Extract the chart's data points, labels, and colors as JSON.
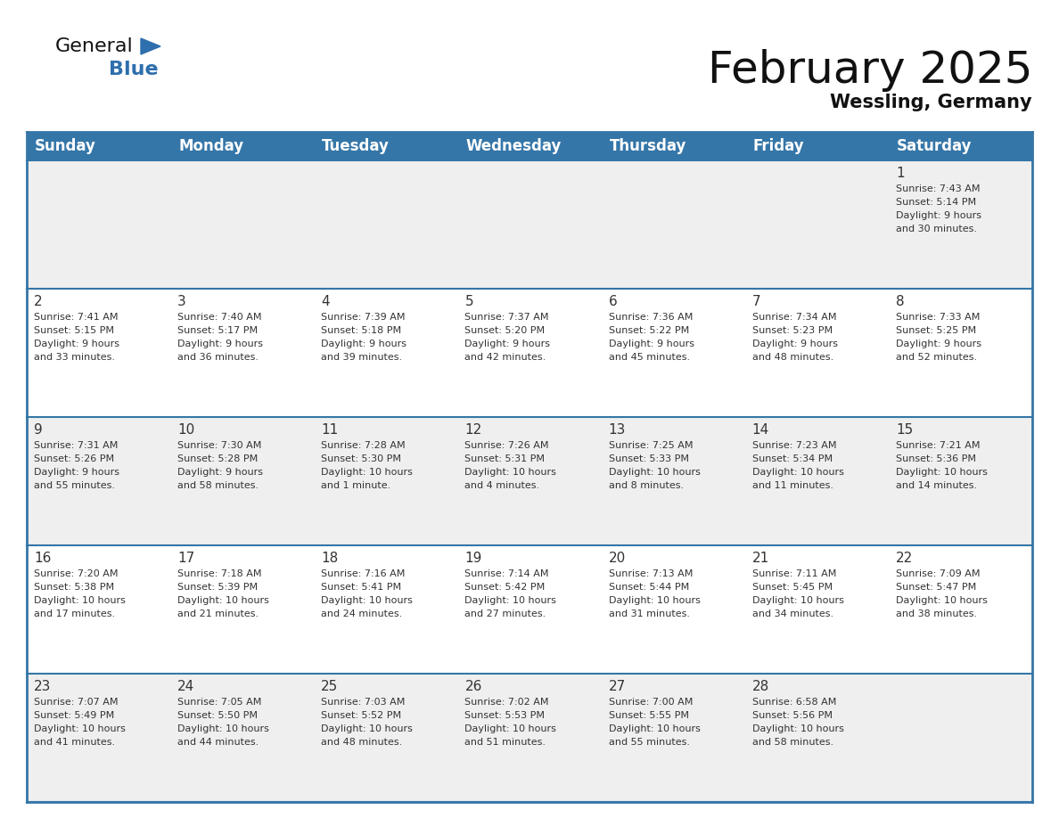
{
  "title": "February 2025",
  "subtitle": "Wessling, Germany",
  "header_bg": "#3576a8",
  "header_text_color": "#ffffff",
  "cell_bg_odd": "#efefef",
  "cell_bg_even": "#ffffff",
  "border_color": "#3576a8",
  "day_names": [
    "Sunday",
    "Monday",
    "Tuesday",
    "Wednesday",
    "Thursday",
    "Friday",
    "Saturday"
  ],
  "days": [
    {
      "day": 1,
      "col": 6,
      "row": 0,
      "sunrise": "7:43 AM",
      "sunset": "5:14 PM",
      "daylight": "9 hours\nand 30 minutes."
    },
    {
      "day": 2,
      "col": 0,
      "row": 1,
      "sunrise": "7:41 AM",
      "sunset": "5:15 PM",
      "daylight": "9 hours\nand 33 minutes."
    },
    {
      "day": 3,
      "col": 1,
      "row": 1,
      "sunrise": "7:40 AM",
      "sunset": "5:17 PM",
      "daylight": "9 hours\nand 36 minutes."
    },
    {
      "day": 4,
      "col": 2,
      "row": 1,
      "sunrise": "7:39 AM",
      "sunset": "5:18 PM",
      "daylight": "9 hours\nand 39 minutes."
    },
    {
      "day": 5,
      "col": 3,
      "row": 1,
      "sunrise": "7:37 AM",
      "sunset": "5:20 PM",
      "daylight": "9 hours\nand 42 minutes."
    },
    {
      "day": 6,
      "col": 4,
      "row": 1,
      "sunrise": "7:36 AM",
      "sunset": "5:22 PM",
      "daylight": "9 hours\nand 45 minutes."
    },
    {
      "day": 7,
      "col": 5,
      "row": 1,
      "sunrise": "7:34 AM",
      "sunset": "5:23 PM",
      "daylight": "9 hours\nand 48 minutes."
    },
    {
      "day": 8,
      "col": 6,
      "row": 1,
      "sunrise": "7:33 AM",
      "sunset": "5:25 PM",
      "daylight": "9 hours\nand 52 minutes."
    },
    {
      "day": 9,
      "col": 0,
      "row": 2,
      "sunrise": "7:31 AM",
      "sunset": "5:26 PM",
      "daylight": "9 hours\nand 55 minutes."
    },
    {
      "day": 10,
      "col": 1,
      "row": 2,
      "sunrise": "7:30 AM",
      "sunset": "5:28 PM",
      "daylight": "9 hours\nand 58 minutes."
    },
    {
      "day": 11,
      "col": 2,
      "row": 2,
      "sunrise": "7:28 AM",
      "sunset": "5:30 PM",
      "daylight": "10 hours\nand 1 minute."
    },
    {
      "day": 12,
      "col": 3,
      "row": 2,
      "sunrise": "7:26 AM",
      "sunset": "5:31 PM",
      "daylight": "10 hours\nand 4 minutes."
    },
    {
      "day": 13,
      "col": 4,
      "row": 2,
      "sunrise": "7:25 AM",
      "sunset": "5:33 PM",
      "daylight": "10 hours\nand 8 minutes."
    },
    {
      "day": 14,
      "col": 5,
      "row": 2,
      "sunrise": "7:23 AM",
      "sunset": "5:34 PM",
      "daylight": "10 hours\nand 11 minutes."
    },
    {
      "day": 15,
      "col": 6,
      "row": 2,
      "sunrise": "7:21 AM",
      "sunset": "5:36 PM",
      "daylight": "10 hours\nand 14 minutes."
    },
    {
      "day": 16,
      "col": 0,
      "row": 3,
      "sunrise": "7:20 AM",
      "sunset": "5:38 PM",
      "daylight": "10 hours\nand 17 minutes."
    },
    {
      "day": 17,
      "col": 1,
      "row": 3,
      "sunrise": "7:18 AM",
      "sunset": "5:39 PM",
      "daylight": "10 hours\nand 21 minutes."
    },
    {
      "day": 18,
      "col": 2,
      "row": 3,
      "sunrise": "7:16 AM",
      "sunset": "5:41 PM",
      "daylight": "10 hours\nand 24 minutes."
    },
    {
      "day": 19,
      "col": 3,
      "row": 3,
      "sunrise": "7:14 AM",
      "sunset": "5:42 PM",
      "daylight": "10 hours\nand 27 minutes."
    },
    {
      "day": 20,
      "col": 4,
      "row": 3,
      "sunrise": "7:13 AM",
      "sunset": "5:44 PM",
      "daylight": "10 hours\nand 31 minutes."
    },
    {
      "day": 21,
      "col": 5,
      "row": 3,
      "sunrise": "7:11 AM",
      "sunset": "5:45 PM",
      "daylight": "10 hours\nand 34 minutes."
    },
    {
      "day": 22,
      "col": 6,
      "row": 3,
      "sunrise": "7:09 AM",
      "sunset": "5:47 PM",
      "daylight": "10 hours\nand 38 minutes."
    },
    {
      "day": 23,
      "col": 0,
      "row": 4,
      "sunrise": "7:07 AM",
      "sunset": "5:49 PM",
      "daylight": "10 hours\nand 41 minutes."
    },
    {
      "day": 24,
      "col": 1,
      "row": 4,
      "sunrise": "7:05 AM",
      "sunset": "5:50 PM",
      "daylight": "10 hours\nand 44 minutes."
    },
    {
      "day": 25,
      "col": 2,
      "row": 4,
      "sunrise": "7:03 AM",
      "sunset": "5:52 PM",
      "daylight": "10 hours\nand 48 minutes."
    },
    {
      "day": 26,
      "col": 3,
      "row": 4,
      "sunrise": "7:02 AM",
      "sunset": "5:53 PM",
      "daylight": "10 hours\nand 51 minutes."
    },
    {
      "day": 27,
      "col": 4,
      "row": 4,
      "sunrise": "7:00 AM",
      "sunset": "5:55 PM",
      "daylight": "10 hours\nand 55 minutes."
    },
    {
      "day": 28,
      "col": 5,
      "row": 4,
      "sunrise": "6:58 AM",
      "sunset": "5:56 PM",
      "daylight": "10 hours\nand 58 minutes."
    }
  ],
  "num_rows": 5,
  "num_cols": 7,
  "title_fontsize": 36,
  "subtitle_fontsize": 15,
  "header_fontsize": 12,
  "day_num_fontsize": 11,
  "cell_text_fontsize": 8.0,
  "logo_triangle_color": "#2e6fad",
  "logo_blue_color": "#2e6fad"
}
